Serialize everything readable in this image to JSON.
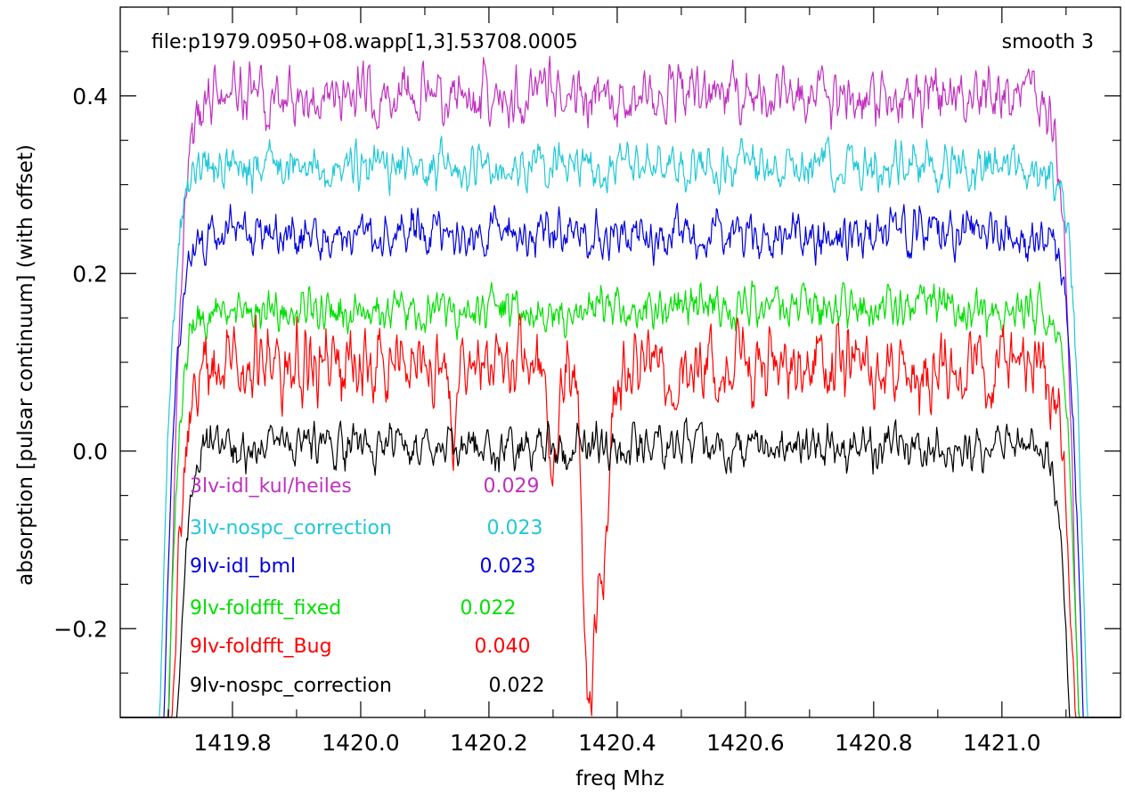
{
  "chart_data": {
    "type": "line",
    "title": "",
    "annotation_left": "file:p1979.0950+08.wapp[1,3].53708.0005",
    "annotation_right": "smooth 3",
    "xlabel": "freq Mhz",
    "ylabel": "absorption [pulsar continuum] (with offset)",
    "xlim": [
      1419.625,
      1421.185
    ],
    "ylim": [
      -0.3,
      0.5
    ],
    "x_ticks": [
      1419.8,
      1420.0,
      1420.2,
      1420.4,
      1420.6,
      1420.8,
      1421.0
    ],
    "x_tick_labels": [
      "1419.8",
      "1420.0",
      "1420.2",
      "1420.4",
      "1420.6",
      "1420.8",
      "1421.0"
    ],
    "y_ticks": [
      -0.2,
      0.0,
      0.2,
      0.4
    ],
    "y_tick_labels": [
      "−0.2",
      "0.0",
      "0.2",
      "0.4"
    ],
    "grid": false,
    "legend_position": "bottom-left",
    "series": [
      {
        "name": "3lv-idl_kul/heiles",
        "rms": "0.029",
        "color": "#c030c0",
        "level": 0.4,
        "noise": 0.022,
        "left_edge_x": 1419.67,
        "right_edge_x": 1421.12,
        "seed": 11
      },
      {
        "name": "3lv-nospc_correction",
        "rms": "0.023",
        "color": "#20c8d8",
        "level": 0.32,
        "noise": 0.018,
        "left_edge_x": 1419.655,
        "right_edge_x": 1421.135,
        "seed": 23
      },
      {
        "name": "9lv-idl_bml",
        "rms": "0.023",
        "color": "#0000dd",
        "level": 0.245,
        "noise": 0.018,
        "left_edge_x": 1419.66,
        "right_edge_x": 1421.13,
        "seed": 37
      },
      {
        "name": "9lv-foldfft_fixed",
        "rms": "0.022",
        "color": "#00e000",
        "level": 0.16,
        "noise": 0.017,
        "left_edge_x": 1419.665,
        "right_edge_x": 1421.125,
        "seed": 41
      },
      {
        "name": "9lv-foldfft_Bug",
        "rms": "0.040",
        "color": "#ff0000",
        "level": 0.095,
        "noise": 0.028,
        "left_edge_x": 1419.67,
        "right_edge_x": 1421.12,
        "seed": 53,
        "features": [
          {
            "x": 1420.145,
            "depth": 0.11,
            "width": 0.008
          },
          {
            "x": 1420.3,
            "depth": 0.12,
            "width": 0.01
          },
          {
            "x": 1420.355,
            "depth": 0.36,
            "width": 0.012
          },
          {
            "x": 1420.375,
            "depth": 0.22,
            "width": 0.014
          }
        ]
      },
      {
        "name": "9lv-nospc_correction",
        "rms": "0.022",
        "color": "#000000",
        "level": 0.005,
        "noise": 0.017,
        "left_edge_x": 1419.675,
        "right_edge_x": 1421.115,
        "seed": 67
      }
    ]
  }
}
